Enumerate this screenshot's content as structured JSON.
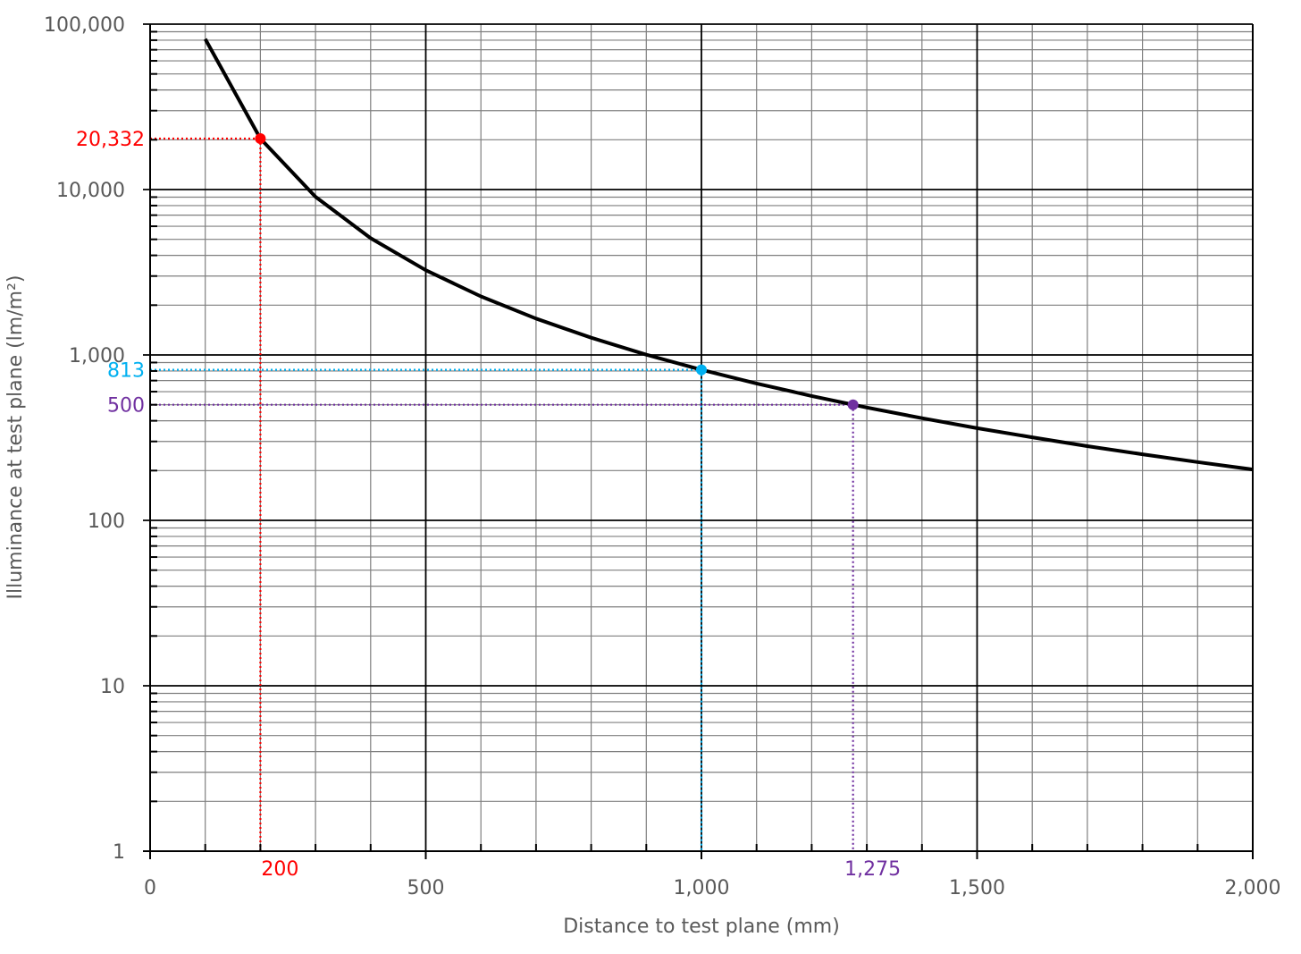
{
  "chart_data": {
    "type": "line",
    "title": "",
    "xlabel": "Distance to test plane (mm)",
    "ylabel": "Illuminance at test plane (lm/m²)",
    "xlim": [
      0,
      2000
    ],
    "ylim": [
      1,
      100000
    ],
    "yscale": "log",
    "grid": true,
    "legend": null,
    "x_ticks": [
      {
        "value": 0,
        "label": "0"
      },
      {
        "value": 500,
        "label": "500"
      },
      {
        "value": 1000,
        "label": "1,000"
      },
      {
        "value": 1500,
        "label": "1,500"
      },
      {
        "value": 2000,
        "label": "2,000"
      }
    ],
    "y_ticks": [
      {
        "value": 1,
        "label": "1"
      },
      {
        "value": 10,
        "label": "10"
      },
      {
        "value": 100,
        "label": "100"
      },
      {
        "value": 1000,
        "label": "1,000"
      },
      {
        "value": 10000,
        "label": "10,000"
      },
      {
        "value": 100000,
        "label": "100,000"
      }
    ],
    "series": [
      {
        "name": "Illuminance",
        "color": "#000000",
        "x": [
          100,
          200,
          300,
          400,
          500,
          600,
          700,
          800,
          900,
          1000,
          1100,
          1200,
          1300,
          1400,
          1500,
          1600,
          1700,
          1800,
          1900,
          2000
        ],
        "y": [
          81300,
          20332,
          9036,
          5083,
          3253,
          2259,
          1659,
          1271,
          1004,
          813,
          672,
          565,
          481,
          415,
          361,
          318,
          281,
          251,
          225,
          203
        ]
      }
    ],
    "annotations": [
      {
        "x": 200,
        "y": 20332,
        "x_label": "200",
        "y_label": "20,332",
        "color": "#FF0000"
      },
      {
        "x": 1000,
        "y": 813,
        "x_label": "",
        "y_label": "813",
        "color": "#00B0F0"
      },
      {
        "x": 1275,
        "y": 500,
        "x_label": "1,275",
        "y_label": "500",
        "color": "#7030A0"
      }
    ]
  }
}
